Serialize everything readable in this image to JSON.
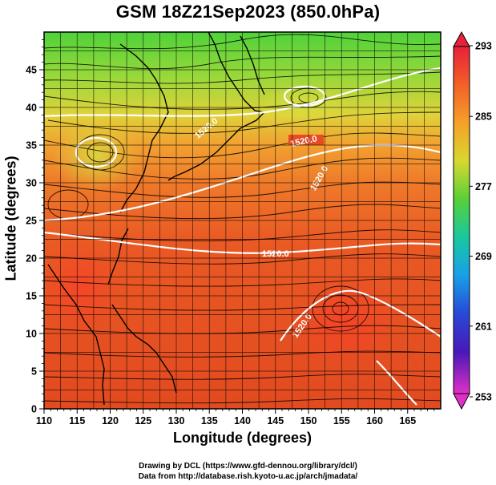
{
  "title": "GSM 18Z21Sep2023 (850.0hPa)",
  "x_axis": {
    "label": "Longitude (degrees)",
    "range": [
      110,
      170
    ],
    "ticks": [
      "110",
      "115",
      "120",
      "125",
      "130",
      "135",
      "140",
      "145",
      "150",
      "155",
      "160",
      "165"
    ]
  },
  "y_axis": {
    "label": "Latitude (degrees)",
    "range": [
      0,
      50
    ],
    "ticks": [
      "0",
      "5",
      "10",
      "15",
      "20",
      "25",
      "30",
      "35",
      "40",
      "45"
    ]
  },
  "colorbar": {
    "ticks": [
      "293",
      "285",
      "277",
      "269",
      "261",
      "253"
    ]
  },
  "contour_labels": [
    "1520.0",
    "1520.0",
    "1520.0",
    "1520.0",
    "1520.0"
  ],
  "footer": {
    "line1": "Drawing by DCL (https://www.gfd-dennou.org/library/dcl/)",
    "line2": "Data from http://database.rish.kyoto-u.ac.jp/arch/jmadata/"
  }
}
